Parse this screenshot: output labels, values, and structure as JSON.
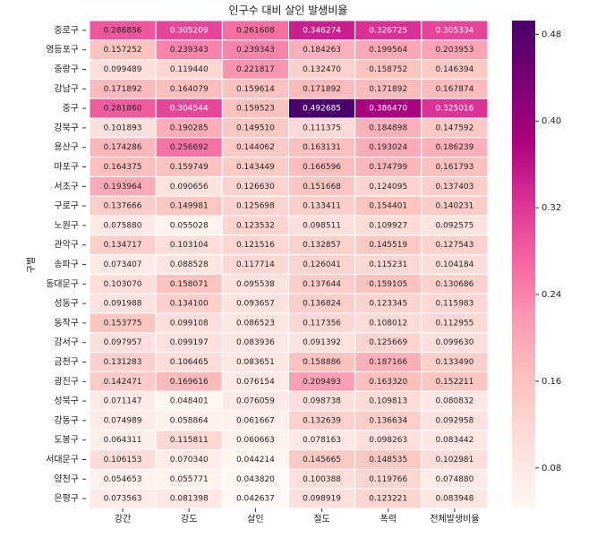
{
  "chart_data": {
    "type": "heatmap",
    "title": "인구수 대비 살인 발생비율",
    "ylabel": "구별",
    "x_categories": [
      "강간",
      "강도",
      "살인",
      "절도",
      "폭력",
      "전체발생비율"
    ],
    "y_categories": [
      "중로구",
      "영등포구",
      "중랑구",
      "강남구",
      "중구",
      "강북구",
      "용산구",
      "마포구",
      "서초구",
      "구로구",
      "노원구",
      "관악구",
      "송파구",
      "동대문구",
      "성동구",
      "동작구",
      "강서구",
      "금천구",
      "광진구",
      "성북구",
      "강동구",
      "도봉구",
      "서대문구",
      "양천구",
      "은평구"
    ],
    "values": [
      [
        0.286856,
        0.305209,
        0.261608,
        0.346274,
        0.326725,
        0.305334
      ],
      [
        0.157252,
        0.239343,
        0.239343,
        0.184263,
        0.199564,
        0.203953
      ],
      [
        0.099489,
        0.11944,
        0.221817,
        0.13247,
        0.158752,
        0.146394
      ],
      [
        0.171892,
        0.164079,
        0.159614,
        0.171892,
        0.171892,
        0.167874
      ],
      [
        0.28186,
        0.304544,
        0.159523,
        0.492685,
        0.38647,
        0.325016
      ],
      [
        0.101893,
        0.190285,
        0.14951,
        0.111375,
        0.184898,
        0.147592
      ],
      [
        0.174286,
        0.256692,
        0.144062,
        0.163131,
        0.193024,
        0.186239
      ],
      [
        0.164375,
        0.159749,
        0.143449,
        0.166596,
        0.174799,
        0.161793
      ],
      [
        0.193964,
        0.090656,
        0.12663,
        0.151668,
        0.124095,
        0.137403
      ],
      [
        0.137666,
        0.149981,
        0.125698,
        0.133411,
        0.154401,
        0.140231
      ],
      [
        0.07588,
        0.055028,
        0.123532,
        0.098511,
        0.109927,
        0.092575
      ],
      [
        0.134717,
        0.103104,
        0.121516,
        0.132857,
        0.145519,
        0.127543
      ],
      [
        0.073407,
        0.088528,
        0.117714,
        0.126041,
        0.115231,
        0.104184
      ],
      [
        0.10307,
        0.158071,
        0.095538,
        0.137644,
        0.159105,
        0.130686
      ],
      [
        0.091988,
        0.1341,
        0.093657,
        0.136824,
        0.123345,
        0.115983
      ],
      [
        0.153775,
        0.099108,
        0.086523,
        0.117356,
        0.108012,
        0.112955
      ],
      [
        0.097957,
        0.099197,
        0.083936,
        0.091392,
        0.125669,
        0.09963
      ],
      [
        0.131283,
        0.106465,
        0.083651,
        0.158886,
        0.187166,
        0.13349
      ],
      [
        0.142471,
        0.169616,
        0.076154,
        0.209493,
        0.16332,
        0.152211
      ],
      [
        0.071147,
        0.048401,
        0.076059,
        0.098738,
        0.109813,
        0.080832
      ],
      [
        0.074989,
        0.058864,
        0.061667,
        0.132639,
        0.136634,
        0.092958
      ],
      [
        0.064311,
        0.115811,
        0.060663,
        0.078163,
        0.098263,
        0.083442
      ],
      [
        0.106153,
        0.07034,
        0.044214,
        0.145665,
        0.148535,
        0.102981
      ],
      [
        0.054653,
        0.055771,
        0.04382,
        0.100388,
        0.119766,
        0.07488
      ],
      [
        0.073563,
        0.081398,
        0.042637,
        0.098919,
        0.123221,
        0.083948
      ]
    ],
    "value_labels": [
      [
        "0.286856",
        "0.305209",
        "0.261608",
        "0.346274",
        "0.326725",
        "0.305334"
      ],
      [
        "0.157252",
        "0.239343",
        "0.239343",
        "0.184263",
        "0.199564",
        "0.203953"
      ],
      [
        "0.099489",
        "0.119440",
        "0.221817",
        "0.132470",
        "0.158752",
        "0.146394"
      ],
      [
        "0.171892",
        "0.164079",
        "0.159614",
        "0.171892",
        "0.171892",
        "0.167874"
      ],
      [
        "0.281860",
        "0.304544",
        "0.159523",
        "0.492685",
        "0.386470",
        "0.325016"
      ],
      [
        "0.101893",
        "0.190285",
        "0.149510",
        "0.111375",
        "0.184898",
        "0.147592"
      ],
      [
        "0.174286",
        "0.256692",
        "0.144062",
        "0.163131",
        "0.193024",
        "0.186239"
      ],
      [
        "0.164375",
        "0.159749",
        "0.143449",
        "0.166596",
        "0.174799",
        "0.161793"
      ],
      [
        "0.193964",
        "0.090656",
        "0.126630",
        "0.151668",
        "0.124095",
        "0.137403"
      ],
      [
        "0.137666",
        "0.149981",
        "0.125698",
        "0.133411",
        "0.154401",
        "0.140231"
      ],
      [
        "0.075880",
        "0.055028",
        "0.123532",
        "0.098511",
        "0.109927",
        "0.092575"
      ],
      [
        "0.134717",
        "0.103104",
        "0.121516",
        "0.132857",
        "0.145519",
        "0.127543"
      ],
      [
        "0.073407",
        "0.088528",
        "0.117714",
        "0.126041",
        "0.115231",
        "0.104184"
      ],
      [
        "0.103070",
        "0.158071",
        "0.095538",
        "0.137644",
        "0.159105",
        "0.130686"
      ],
      [
        "0.091988",
        "0.134100",
        "0.093657",
        "0.136824",
        "0.123345",
        "0.115983"
      ],
      [
        "0.153775",
        "0.099108",
        "0.086523",
        "0.117356",
        "0.108012",
        "0.112955"
      ],
      [
        "0.097957",
        "0.099197",
        "0.083936",
        "0.091392",
        "0.125669",
        "0.099630"
      ],
      [
        "0.131283",
        "0.106465",
        "0.083651",
        "0.158886",
        "0.187166",
        "0.133490"
      ],
      [
        "0.142471",
        "0.169616",
        "0.076154",
        "0.209493",
        "0.163320",
        "0.152211"
      ],
      [
        "0.071147",
        "0.048401",
        "0.076059",
        "0.098738",
        "0.109813",
        "0.080832"
      ],
      [
        "0.074989",
        "0.058864",
        "0.061667",
        "0.132639",
        "0.136634",
        "0.092958"
      ],
      [
        "0.064311",
        "0.115811",
        "0.060663",
        "0.078163",
        "0.098263",
        "0.083442"
      ],
      [
        "0.106153",
        "0.070340",
        "0.044214",
        "0.145665",
        "0.148535",
        "0.102981"
      ],
      [
        "0.054653",
        "0.055771",
        "0.043820",
        "0.100388",
        "0.119766",
        "0.074880"
      ],
      [
        "0.073563",
        "0.081398",
        "0.042637",
        "0.098919",
        "0.123221",
        "0.083948"
      ]
    ],
    "colors": [
      "#fff7f3",
      "#fde0dd",
      "#fcc5c0",
      "#fa9fb5",
      "#f768a1",
      "#dd3497",
      "#ae017e",
      "#7a0177",
      "#49006a"
    ],
    "clim": [
      0.042637,
      0.492685
    ],
    "cticks": [
      0.08,
      0.16,
      0.24,
      0.32,
      {
        "value": 0.4,
        "label": "0.40"
      },
      0.48
    ]
  }
}
